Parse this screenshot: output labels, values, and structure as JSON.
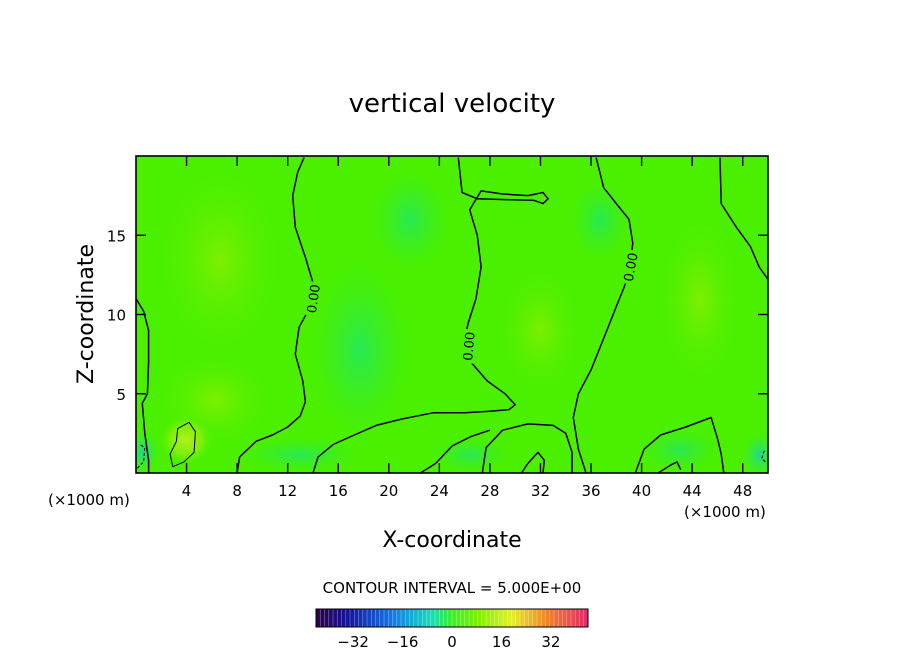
{
  "chart_data": {
    "type": "heatmap",
    "title": "vertical velocity",
    "xlabel": "X-coordinate",
    "ylabel": "Z-coordinate",
    "x_unit_left": "(×1000 m)",
    "x_unit_right": "(×1000 m)",
    "xlim": [
      0,
      50
    ],
    "ylim": [
      0,
      20
    ],
    "x_ticks": [
      4,
      8,
      12,
      16,
      20,
      24,
      28,
      32,
      36,
      40,
      44,
      48
    ],
    "y_ticks": [
      5,
      10,
      15
    ],
    "contour_interval_text": "CONTOUR INTERVAL = 5.000E+00",
    "contour_labels": [
      {
        "text": "0.00",
        "x": 14.0,
        "y": 11.0,
        "angle": -82
      },
      {
        "text": "0.00",
        "x": 26.3,
        "y": 8.0,
        "angle": -85
      },
      {
        "text": "0.00",
        "x": 39.1,
        "y": 13.0,
        "angle": -80
      }
    ],
    "contours": [
      {
        "level": 0,
        "points": [
          [
            0,
            11
          ],
          [
            0.6,
            10.2
          ],
          [
            1.0,
            9.0
          ],
          [
            1.0,
            7.0
          ],
          [
            0.9,
            5.0
          ],
          [
            0.5,
            4.4
          ],
          [
            0.7,
            2.5
          ],
          [
            1.0,
            0.8
          ],
          [
            1.0,
            0
          ]
        ]
      },
      {
        "level": 0,
        "points": [
          [
            8.0,
            0
          ],
          [
            8.2,
            1.0
          ],
          [
            9.5,
            2.0
          ],
          [
            10.8,
            2.4
          ],
          [
            12.0,
            2.9
          ],
          [
            13.0,
            3.6
          ],
          [
            13.4,
            4.5
          ],
          [
            13.2,
            5.8
          ],
          [
            12.6,
            7.5
          ],
          [
            12.9,
            9.2
          ],
          [
            13.8,
            10.5
          ],
          [
            14.0,
            12.0
          ],
          [
            13.4,
            13.6
          ],
          [
            12.6,
            15.5
          ],
          [
            12.4,
            17.5
          ],
          [
            12.8,
            19.0
          ],
          [
            13.3,
            19.9
          ]
        ]
      },
      {
        "level": 0,
        "points": [
          [
            14.0,
            0
          ],
          [
            14.4,
            1.0
          ],
          [
            15.6,
            1.8
          ],
          [
            17.0,
            2.3
          ],
          [
            19.0,
            3.0
          ],
          [
            21.0,
            3.4
          ],
          [
            23.5,
            3.8
          ],
          [
            26.0,
            3.8
          ],
          [
            28.0,
            3.9
          ],
          [
            29.5,
            4.0
          ],
          [
            30.0,
            4.3
          ],
          [
            29.2,
            5.0
          ],
          [
            27.8,
            5.8
          ],
          [
            26.6,
            6.9
          ],
          [
            26.0,
            8.5
          ],
          [
            26.3,
            9.5
          ],
          [
            26.9,
            11.0
          ],
          [
            27.3,
            13.0
          ],
          [
            27.0,
            15.0
          ],
          [
            26.4,
            16.6
          ],
          [
            27.3,
            17.8
          ],
          [
            29.0,
            17.6
          ],
          [
            31.0,
            17.5
          ],
          [
            32.2,
            17.7
          ],
          [
            32.6,
            17.3
          ],
          [
            32.2,
            17.0
          ],
          [
            31.5,
            17.2
          ],
          [
            27.0,
            17.3
          ],
          [
            25.8,
            17.7
          ],
          [
            25.5,
            19.9
          ]
        ]
      },
      {
        "level": 0,
        "points": [
          [
            22.5,
            0
          ],
          [
            23.7,
            0.6
          ],
          [
            25.0,
            1.7
          ],
          [
            26.5,
            2.3
          ],
          [
            28.0,
            2.7
          ]
        ]
      },
      {
        "level": 0,
        "points": [
          [
            27.4,
            0
          ],
          [
            27.7,
            1.6
          ],
          [
            29.0,
            2.7
          ],
          [
            31.0,
            3.1
          ],
          [
            33.0,
            3.0
          ],
          [
            34.0,
            2.5
          ],
          [
            34.5,
            1.3
          ],
          [
            34.5,
            0
          ]
        ]
      },
      {
        "level": 0,
        "points": [
          [
            30.5,
            0
          ],
          [
            31.0,
            0.6
          ],
          [
            31.8,
            1.3
          ],
          [
            32.3,
            0.8
          ],
          [
            32.2,
            0
          ]
        ]
      },
      {
        "level": 0,
        "points": [
          [
            35.6,
            0
          ],
          [
            35.0,
            1.5
          ],
          [
            34.6,
            3.5
          ],
          [
            35.0,
            5.0
          ],
          [
            36.0,
            6.5
          ],
          [
            37.0,
            8.5
          ],
          [
            38.0,
            10.5
          ],
          [
            39.0,
            12.5
          ],
          [
            39.3,
            14.5
          ],
          [
            39.0,
            16.0
          ],
          [
            38.0,
            17.0
          ],
          [
            37.0,
            18.0
          ],
          [
            36.4,
            19.9
          ]
        ]
      },
      {
        "level": 0,
        "points": [
          [
            39.5,
            0
          ],
          [
            40.2,
            1.5
          ],
          [
            41.5,
            2.4
          ],
          [
            43.5,
            2.9
          ],
          [
            45.5,
            3.5
          ],
          [
            46.0,
            2.2
          ],
          [
            46.3,
            1.2
          ],
          [
            46.5,
            0
          ]
        ]
      },
      {
        "level": 0,
        "points": [
          [
            41.3,
            0
          ],
          [
            42.3,
            0.5
          ],
          [
            42.8,
            0.7
          ],
          [
            43.1,
            0.2
          ]
        ]
      },
      {
        "level": 0,
        "points": [
          [
            46.2,
            19.9
          ],
          [
            46.3,
            17.0
          ],
          [
            47.5,
            15.5
          ],
          [
            48.6,
            14.3
          ],
          [
            49.3,
            13.0
          ],
          [
            50,
            12.2
          ]
        ]
      },
      {
        "level": 0,
        "points": [
          [
            2.9,
            0.4
          ],
          [
            2.7,
            1.2
          ],
          [
            3.2,
            2.0
          ],
          [
            3.3,
            2.8
          ],
          [
            4.2,
            3.2
          ],
          [
            4.7,
            2.6
          ],
          [
            4.6,
            1.3
          ],
          [
            3.8,
            0.7
          ],
          [
            2.9,
            0.4
          ]
        ],
        "closed": true,
        "thin": true
      },
      {
        "level": -5,
        "dashed": true,
        "points": [
          [
            0.1,
            0.3
          ],
          [
            0.6,
            0.7
          ],
          [
            0.7,
            1.6
          ],
          [
            0.3,
            1.8
          ]
        ],
        "thin": true
      },
      {
        "level": -5,
        "dashed": true,
        "points": [
          [
            49.7,
            1.4
          ],
          [
            49.5,
            0.9
          ],
          [
            49.8,
            0.7
          ]
        ],
        "thin": true
      }
    ],
    "color_field_note": "values near 0 across domain, slight positive patches near x≈3-4 z≈1-3",
    "colorbar": {
      "range": [
        -44,
        44
      ],
      "tick_values": [
        -32,
        -16,
        0,
        16,
        32
      ],
      "tick_labels": [
        "−32",
        "−16",
        "0",
        "16",
        "32"
      ]
    }
  }
}
